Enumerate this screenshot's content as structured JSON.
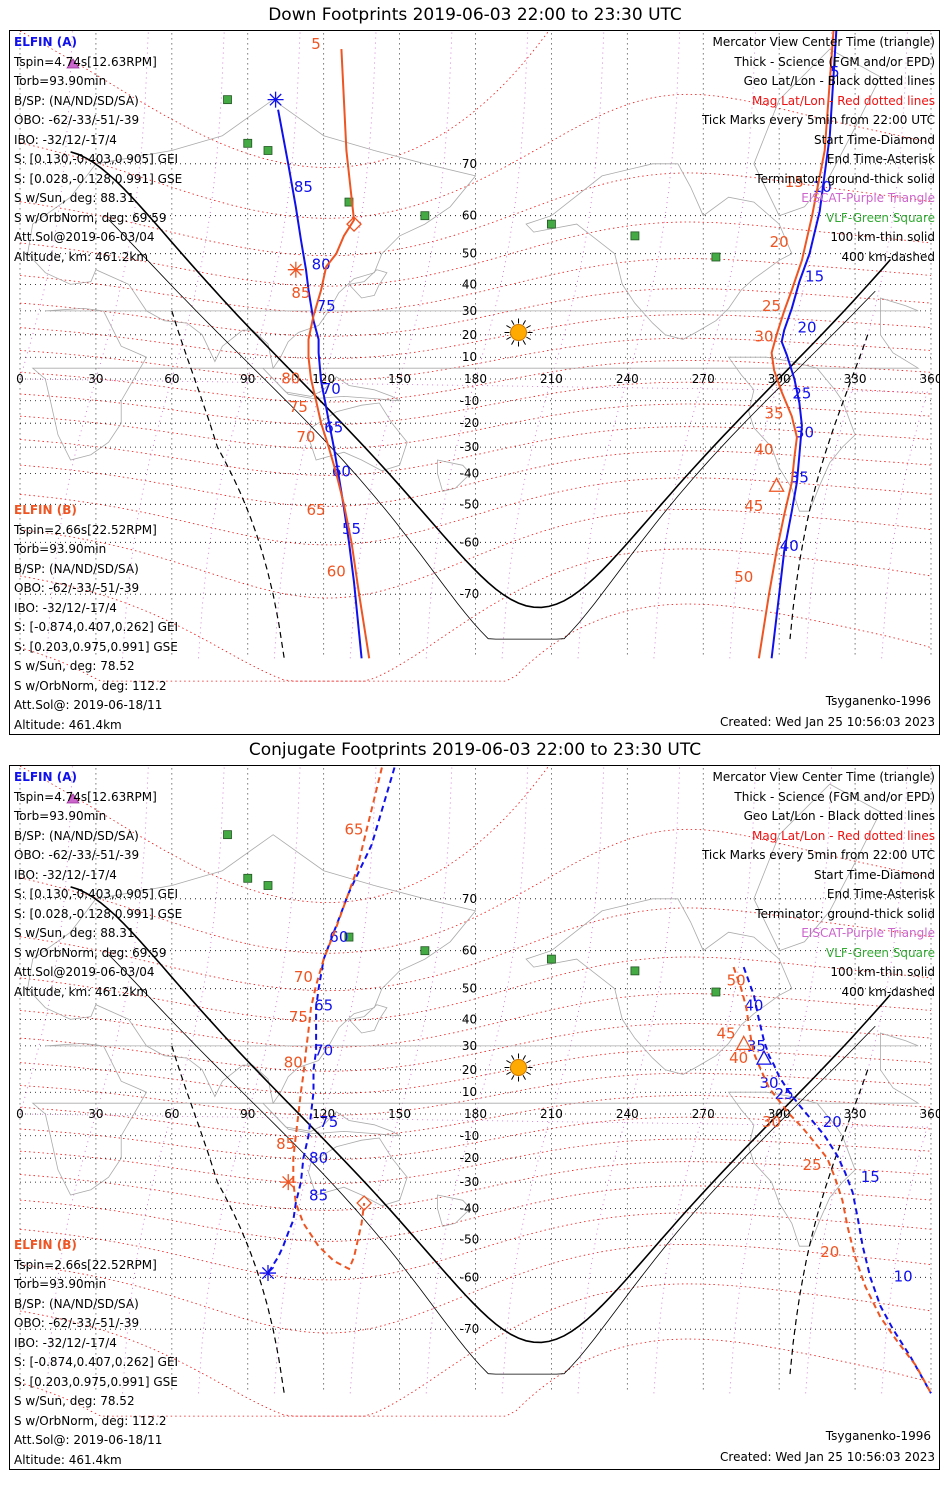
{
  "colors": {
    "elfin_a": "#1010ee",
    "elfin_b": "#ee5522",
    "mag_grid": "#ee1111",
    "geo_grid": "#000000",
    "eiscat": "#cc66cc",
    "vlf": "#33aa33",
    "coast": "#aaaaaa",
    "sun": "#ffaa00"
  },
  "elfin_a_info": [
    "ELFIN (A)",
    "Tspin=4.74s[12.63RPM]",
    "Torb=93.90min",
    "B/SP: (NA/ND/SD/SA)",
    "OBO: -62/-33/-51/-39",
    "IBO: -32/12/-17/4",
    "S: [0.130,-0.403,0.905] GEI",
    "S: [0.028,-0.128,0.991] GSE",
    "S w/Sun, deg: 88.31",
    "S w/OrbNorm, deg: 69.59",
    "Att.Sol@2019-06-03/04",
    "Altitude, km: 461.2km"
  ],
  "elfin_b_info": [
    "ELFIN (B)",
    "Tspin=2.66s[22.52RPM]",
    "Torb=93.90min",
    "B/SP: (NA/ND/SD/SA)",
    "OBO: -62/-33/-51/-39",
    "IBO: -32/12/-17/4",
    "S: [-0.874,0.407,0.262] GEI",
    "S: [0.203,0.975,0.991] GSE",
    "S w/Sun, deg: 78.52",
    "S w/OrbNorm, deg: 112.2",
    "Att.Sol@: 2019-06-18/11",
    "Altitude: 461.4km"
  ],
  "legend": [
    "Mercator View Center Time (triangle)",
    "Thick - Science (FGM and/or EPD)",
    "Geo Lat/Lon - Black dotted lines",
    "Mag Lat/Lon - Red dotted lines",
    "Tick Marks every 5min from 22:00 UTC",
    "Start Time-Diamond",
    "End Time-Asterisk",
    "Terminator: ground-thick solid",
    "EISCAT-Purple Triangle",
    "VLF-Green Square",
    "100 km-thin solid",
    "400 km-dashed"
  ],
  "model": "Tsyganenko-1996",
  "created": "Created: Wed Jan 25 10:56:03 2023",
  "chart_data": [
    {
      "type": "scatter",
      "title": "Down Footprints 2019-06-03 22:00 to 23:30 UTC",
      "x_ticks": [
        0,
        30,
        60,
        90,
        120,
        150,
        180,
        210,
        240,
        270,
        300,
        330,
        360
      ],
      "y_ticks": [
        70,
        60,
        50,
        40,
        30,
        20,
        10,
        -10,
        -20,
        -30,
        -40,
        -50,
        -60,
        -70
      ],
      "xlim": [
        0,
        360
      ],
      "ylim": [
        -78,
        84
      ],
      "series": [
        {
          "name": "ELFIN (A)",
          "style": "solid",
          "points": [
            [
              102,
              77
            ],
            [
              106,
              70
            ],
            [
              109,
              62
            ],
            [
              111,
              54
            ],
            [
              113,
              45
            ],
            [
              114,
              38
            ],
            [
              116,
              26
            ],
            [
              118,
              18
            ],
            [
              118,
              12
            ],
            [
              119,
              -1
            ],
            [
              121,
              -13
            ],
            [
              122,
              -19
            ],
            [
              124,
              -30
            ],
            [
              126,
              -41
            ],
            [
              128,
              -51
            ],
            [
              130,
              -60
            ],
            [
              132,
              -68
            ],
            [
              135,
              -78
            ]
          ],
          "tick_labels": [
            [
              112,
              65,
              "85"
            ],
            [
              119,
              45,
              "80"
            ],
            [
              121,
              30,
              "75"
            ],
            [
              123,
              -7,
              "70"
            ],
            [
              124,
              -24,
              "65"
            ],
            [
              127,
              -41,
              "60"
            ],
            [
              131,
              -58,
              "55"
            ]
          ]
        },
        {
          "name": "ELFIN (B)",
          "style": "solid",
          "points": [
            [
              127,
              82
            ],
            [
              128,
              78
            ],
            [
              129,
              72
            ],
            [
              131,
              64
            ],
            [
              132,
              59
            ],
            [
              128,
              55
            ],
            [
              125,
              50
            ],
            [
              121,
              46
            ],
            [
              119,
              38
            ],
            [
              116,
              28
            ],
            [
              114,
              18
            ],
            [
              114,
              10
            ],
            [
              115,
              0
            ],
            [
              117,
              -10
            ],
            [
              119,
              -20
            ],
            [
              122,
              -30
            ],
            [
              125,
              -40
            ],
            [
              128,
              -50
            ],
            [
              131,
              -60
            ],
            [
              134,
              -70
            ],
            [
              138,
              -78
            ]
          ],
          "tick_labels": [
            [
              117,
              82,
              "5"
            ],
            [
              111,
              35,
              "85"
            ],
            [
              107,
              -2,
              "80"
            ],
            [
              110,
              -15,
              "75"
            ],
            [
              113,
              -28,
              "70"
            ],
            [
              117,
              -53,
              "65"
            ],
            [
              125,
              -67,
              "60"
            ]
          ]
        },
        {
          "name": "ELFIN (A)",
          "style": "solid",
          "points": [
            [
              323,
              84
            ],
            [
              320,
              74
            ],
            [
              316,
              61
            ],
            [
              312,
              50
            ],
            [
              308,
              41
            ],
            [
              305,
              31
            ],
            [
              302,
              22
            ],
            [
              301,
              17
            ],
            [
              303,
              11
            ],
            [
              306,
              0
            ],
            [
              308,
              -11
            ],
            [
              309,
              -21
            ],
            [
              308,
              -33
            ],
            [
              307,
              -43
            ],
            [
              305,
              -52
            ],
            [
              302,
              -62
            ],
            [
              300,
              -70
            ],
            [
              297,
              -78
            ]
          ],
          "tick_labels": [
            [
              322,
              80,
              "5"
            ],
            [
              317,
              65,
              "10"
            ],
            [
              314,
              41,
              "15"
            ],
            [
              311,
              21,
              "20"
            ],
            [
              309,
              -9,
              "25"
            ],
            [
              310,
              -26,
              "30"
            ],
            [
              308,
              -43,
              "35"
            ],
            [
              304,
              -62,
              "40"
            ]
          ]
        },
        {
          "name": "ELFIN (B)",
          "style": "solid",
          "points": [
            [
              322,
              84
            ],
            [
              318,
              72
            ],
            [
              313,
              60
            ],
            [
              309,
              48
            ],
            [
              305,
              38
            ],
            [
              302,
              30
            ],
            [
              299,
              20
            ],
            [
              297,
              12
            ],
            [
              298,
              4
            ],
            [
              301,
              -6
            ],
            [
              305,
              -17
            ],
            [
              307,
              -26
            ],
            [
              306,
              -34
            ],
            [
              305,
              -43
            ],
            [
              302,
              -53
            ],
            [
              299,
              -62
            ],
            [
              296,
              -70
            ],
            [
              292,
              -78
            ]
          ],
          "tick_labels": [
            [
              306,
              66,
              "15"
            ],
            [
              300,
              52,
              "20"
            ],
            [
              297,
              30,
              "25"
            ],
            [
              294,
              17,
              "30"
            ],
            [
              298,
              -18,
              "35"
            ],
            [
              294,
              -33,
              "40"
            ],
            [
              290,
              -52,
              "45"
            ],
            [
              286,
              -68,
              "50"
            ]
          ]
        }
      ]
    },
    {
      "type": "scatter",
      "title": "Conjugate Footprints 2019-06-03 22:00 to 23:30 UTC",
      "x_ticks": [
        0,
        30,
        60,
        90,
        120,
        150,
        180,
        210,
        240,
        270,
        300,
        330,
        360
      ],
      "y_ticks": [
        70,
        60,
        50,
        40,
        30,
        20,
        10,
        -10,
        -20,
        -30,
        -40,
        -50,
        -60,
        -70
      ],
      "xlim": [
        0,
        360
      ],
      "ylim": [
        -78,
        84
      ],
      "series": [
        {
          "name": "ELFIN (A)",
          "style": "dashed",
          "points": [
            [
              148,
              83
            ],
            [
              139,
              77
            ],
            [
              130,
              71
            ],
            [
              124,
              64
            ],
            [
              120,
              58
            ],
            [
              118,
              50
            ],
            [
              117,
              44
            ],
            [
              117,
              36
            ],
            [
              117,
              28
            ],
            [
              116,
              20
            ],
            [
              116,
              10
            ],
            [
              115,
              0
            ],
            [
              114,
              -10
            ],
            [
              112,
              -20
            ],
            [
              111,
              -30
            ],
            [
              109,
              -38
            ],
            [
              108,
              -44
            ],
            [
              106,
              -48
            ],
            [
              104,
              -52
            ],
            [
              102,
              -55
            ],
            [
              98,
              -59
            ]
          ],
          "tick_labels": [
            [
              126,
              62,
              "60"
            ],
            [
              120,
              43,
              "65"
            ],
            [
              120,
              26,
              "70"
            ],
            [
              122,
              -6,
              "75"
            ],
            [
              118,
              -22,
              "80"
            ],
            [
              118,
              -37,
              "85"
            ]
          ]
        },
        {
          "name": "ELFIN (B)",
          "style": "dashed",
          "points": [
            [
              143,
              83
            ],
            [
              133,
              74
            ],
            [
              125,
              65
            ],
            [
              120,
              58
            ],
            [
              117,
              51
            ],
            [
              115,
              44
            ],
            [
              114,
              36
            ],
            [
              113,
              28
            ],
            [
              112,
              18
            ],
            [
              111,
              10
            ],
            [
              110,
              0
            ],
            [
              109,
              -10
            ],
            [
              108,
              -20
            ],
            [
              108,
              -30
            ],
            [
              109,
              -38
            ],
            [
              112,
              -45
            ],
            [
              118,
              -52
            ],
            [
              124,
              -56
            ],
            [
              130,
              -58
            ],
            [
              132,
              -55
            ],
            [
              135,
              -45
            ],
            [
              136,
              -38
            ]
          ],
          "tick_labels": [
            [
              132,
              78,
              "65"
            ],
            [
              112,
              52,
              "70"
            ],
            [
              110,
              39,
              "75"
            ],
            [
              108,
              21,
              "80"
            ],
            [
              105,
              -16,
              "85"
            ]
          ]
        },
        {
          "name": "ELFIN (A)",
          "style": "dashed",
          "points": [
            [
              286,
              56
            ],
            [
              290,
              48
            ],
            [
              292,
              40
            ],
            [
              294,
              32
            ],
            [
              296,
              26
            ],
            [
              298,
              22
            ],
            [
              300,
              17
            ],
            [
              304,
              10
            ],
            [
              308,
              4
            ],
            [
              313,
              -3
            ],
            [
              318,
              -10
            ],
            [
              323,
              -19
            ],
            [
              326,
              -26
            ],
            [
              329,
              -34
            ],
            [
              331,
              -43
            ],
            [
              333,
              -52
            ],
            [
              336,
              -60
            ],
            [
              340,
              -66
            ],
            [
              345,
              -70
            ],
            [
              352,
              -74
            ],
            [
              360,
              -78
            ]
          ],
          "tick_labels": [
            [
              290,
              43,
              "40"
            ],
            [
              291,
              28,
              "35"
            ],
            [
              296,
              12,
              "30"
            ],
            [
              302,
              7,
              "25"
            ],
            [
              321,
              -6,
              "20"
            ],
            [
              336,
              -30,
              "15"
            ],
            [
              349,
              -61,
              "10"
            ]
          ]
        },
        {
          "name": "ELFIN (B)",
          "style": "dashed",
          "points": [
            [
              282,
              56
            ],
            [
              285,
              50
            ],
            [
              287,
              44
            ],
            [
              288,
              38
            ],
            [
              289,
              32
            ],
            [
              290,
              27
            ],
            [
              292,
              22
            ],
            [
              294,
              17
            ],
            [
              296,
              12
            ],
            [
              300,
              6
            ],
            [
              304,
              0
            ],
            [
              309,
              -6
            ],
            [
              314,
              -13
            ],
            [
              319,
              -20
            ],
            [
              322,
              -28
            ],
            [
              325,
              -37
            ],
            [
              327,
              -46
            ],
            [
              330,
              -55
            ],
            [
              334,
              -62
            ],
            [
              340,
              -68
            ],
            [
              347,
              -72
            ],
            [
              354,
              -75
            ],
            [
              360,
              -78
            ]
          ],
          "tick_labels": [
            [
              283,
              51,
              "50"
            ],
            [
              279,
              33,
              "45"
            ],
            [
              284,
              23,
              "40"
            ],
            [
              297,
              -6,
              "30"
            ],
            [
              313,
              -25,
              "25"
            ],
            [
              320,
              -55,
              "20"
            ]
          ]
        }
      ]
    }
  ]
}
